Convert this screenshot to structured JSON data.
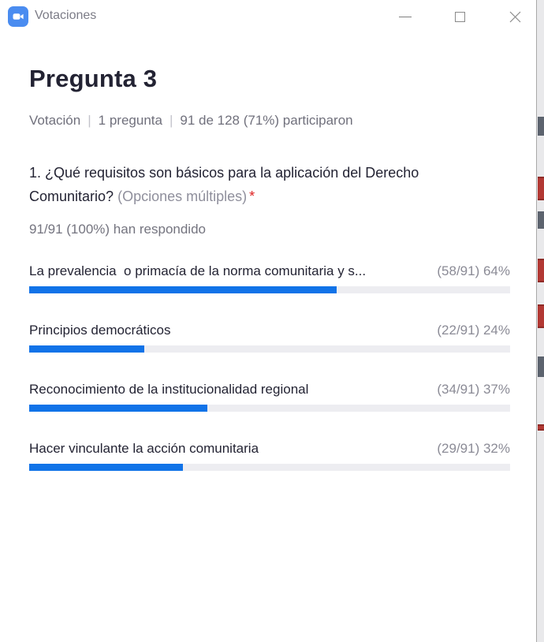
{
  "window": {
    "title": "Votaciones",
    "controls": {
      "minimize_label": "minimize",
      "maximize_label": "maximize",
      "close_label": "close"
    }
  },
  "header": {
    "title": "Pregunta 3",
    "meta": {
      "type": "Votación",
      "question_count": "1 pregunta",
      "participation": "91 de 128 (71%) participaron",
      "separator": "|"
    }
  },
  "question": {
    "text": "1. ¿Qué requisitos son básicos para la aplicación del Derecho Comunitario?",
    "mode": "(Opciones múltiples)",
    "required_marker": "*",
    "responded": "91/91 (100%) han respondido"
  },
  "options": [
    {
      "label": "La prevalencia  o primacía de la norma comunitaria y s...",
      "stat": "(58/91) 64%",
      "percent": 64
    },
    {
      "label": "Principios democráticos",
      "stat": "(22/91) 24%",
      "percent": 24
    },
    {
      "label": "Reconocimiento de la institucionalidad regional",
      "stat": "(34/91) 37%",
      "percent": 37
    },
    {
      "label": "Hacer vinculante la acción comunitaria",
      "stat": "(29/91) 32%",
      "percent": 32
    }
  ],
  "colors": {
    "accent_blue": "#1173e8",
    "bar_track": "#ededf1",
    "text_dark": "#232333",
    "text_gray": "#74747f",
    "stat_gray": "#8b8b96",
    "required_red": "#de2121",
    "zoom_icon_blue": "#4a8cf0",
    "window_border": "#a9a9a9"
  },
  "chart_data": {
    "type": "bar",
    "title": "Pregunta 3 — ¿Qué requisitos son básicos para la aplicación del Derecho Comunitario?",
    "categories": [
      "La prevalencia  o primacía de la norma comunitaria y s...",
      "Principios democráticos",
      "Reconocimiento de la institucionalidad regional",
      "Hacer vinculante la acción comunitaria"
    ],
    "series": [
      {
        "name": "votes",
        "values": [
          58,
          22,
          34,
          29
        ]
      },
      {
        "name": "percent",
        "values": [
          64,
          24,
          37,
          32
        ]
      }
    ],
    "total_respondents": 91,
    "xlabel": "",
    "ylabel": "",
    "ylim": [
      0,
      91
    ],
    "legend_position": "none",
    "grid": false
  }
}
